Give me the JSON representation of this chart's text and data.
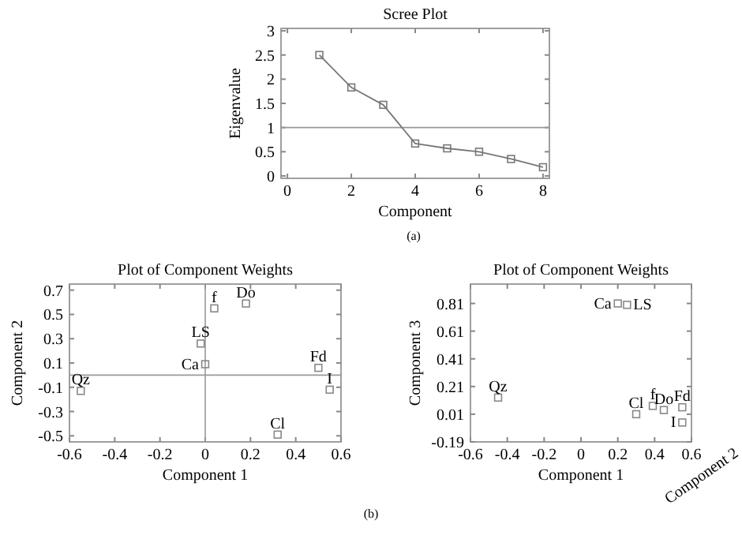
{
  "chart_data": [
    {
      "type": "line",
      "title": "Scree Plot",
      "xlabel": "Component",
      "ylabel": "Eigenvalue",
      "x": [
        1,
        2,
        3,
        4,
        5,
        6,
        7,
        8
      ],
      "series": [
        {
          "color": "#777777",
          "values": [
            2.5,
            1.83,
            1.47,
            0.67,
            0.57,
            0.5,
            0.35,
            0.18
          ]
        }
      ],
      "xlim": [
        -0.2,
        8.2
      ],
      "ylim": [
        -0.05,
        3.05
      ],
      "xticks": [
        0,
        2,
        4,
        6,
        8
      ],
      "yticks": [
        0,
        0.5,
        1,
        1.5,
        2,
        2.5,
        3
      ],
      "marker": "square",
      "grid": false,
      "ref_lines": [
        {
          "axis": "y",
          "value": 1
        }
      ],
      "annotations": [
        "(a)"
      ]
    },
    {
      "type": "scatter",
      "title": "Plot of Component Weights",
      "xlabel": "Component 1",
      "ylabel": "Component 2",
      "x": [
        -0.55,
        0.04,
        0.18,
        -0.02,
        0,
        0.5,
        0.55,
        0.32
      ],
      "series": [
        {
          "color": "#888888",
          "values": [
            -0.13,
            0.55,
            0.59,
            0.26,
            0.09,
            0.06,
            -0.12,
            -0.49
          ]
        }
      ],
      "xlim": [
        -0.6,
        0.6
      ],
      "ylim": [
        -0.55,
        0.75
      ],
      "xticks": [
        -0.6,
        -0.4,
        -0.2,
        0,
        0.2,
        0.4,
        0.6
      ],
      "yticks": [
        -0.5,
        -0.3,
        -0.1,
        0.1,
        0.3,
        0.5,
        0.7
      ],
      "marker": "square",
      "grid": false,
      "ref_lines": [
        {
          "axis": "x",
          "value": 0
        },
        {
          "axis": "y",
          "value": 0
        }
      ],
      "annotations": [
        "(b)",
        {
          "text": "Qz",
          "x": -0.55,
          "y": -0.13
        },
        {
          "text": "f",
          "x": 0.04,
          "y": 0.55
        },
        {
          "text": "Do",
          "x": 0.18,
          "y": 0.59
        },
        {
          "text": "LS",
          "x": -0.02,
          "y": 0.26
        },
        {
          "text": "Ca",
          "x": 0,
          "y": 0.09
        },
        {
          "text": "Fd",
          "x": 0.5,
          "y": 0.06
        },
        {
          "text": "I",
          "x": 0.55,
          "y": -0.12
        },
        {
          "text": "Cl",
          "x": 0.32,
          "y": -0.49
        }
      ]
    },
    {
      "type": "scatter",
      "title": "Plot of Component Weights",
      "xlabel": "Component 1",
      "ylabel": "Component 3",
      "x": [
        -0.45,
        0.39,
        0.45,
        0.25,
        0.2,
        0.55,
        0.55,
        0.3
      ],
      "series": [
        {
          "color": "#888888",
          "values": [
            0.13,
            0.07,
            0.04,
            0.8,
            0.81,
            0.06,
            -0.05,
            0.01
          ]
        }
      ],
      "xlim": [
        -0.6,
        0.6
      ],
      "ylim": [
        -0.19,
        0.95
      ],
      "xticks": [
        -0.6,
        -0.4,
        -0.2,
        0,
        0.2,
        0.4,
        0.6
      ],
      "yticks": [
        -0.19,
        0.01,
        0.21,
        0.41,
        0.61,
        0.81
      ],
      "marker": "square",
      "grid": false,
      "annotations": [
        "Component 2",
        {
          "text": "Qz",
          "x": -0.45,
          "y": 0.13
        },
        {
          "text": "f",
          "x": 0.39,
          "y": 0.07
        },
        {
          "text": "Do",
          "x": 0.45,
          "y": 0.04
        },
        {
          "text": "LS",
          "x": 0.25,
          "y": 0.8
        },
        {
          "text": "Ca",
          "x": 0.2,
          "y": 0.81
        },
        {
          "text": "Fd",
          "x": 0.55,
          "y": 0.06
        },
        {
          "text": "I",
          "x": 0.55,
          "y": -0.05
        },
        {
          "text": "Cl",
          "x": 0.3,
          "y": 0.01
        }
      ]
    }
  ]
}
